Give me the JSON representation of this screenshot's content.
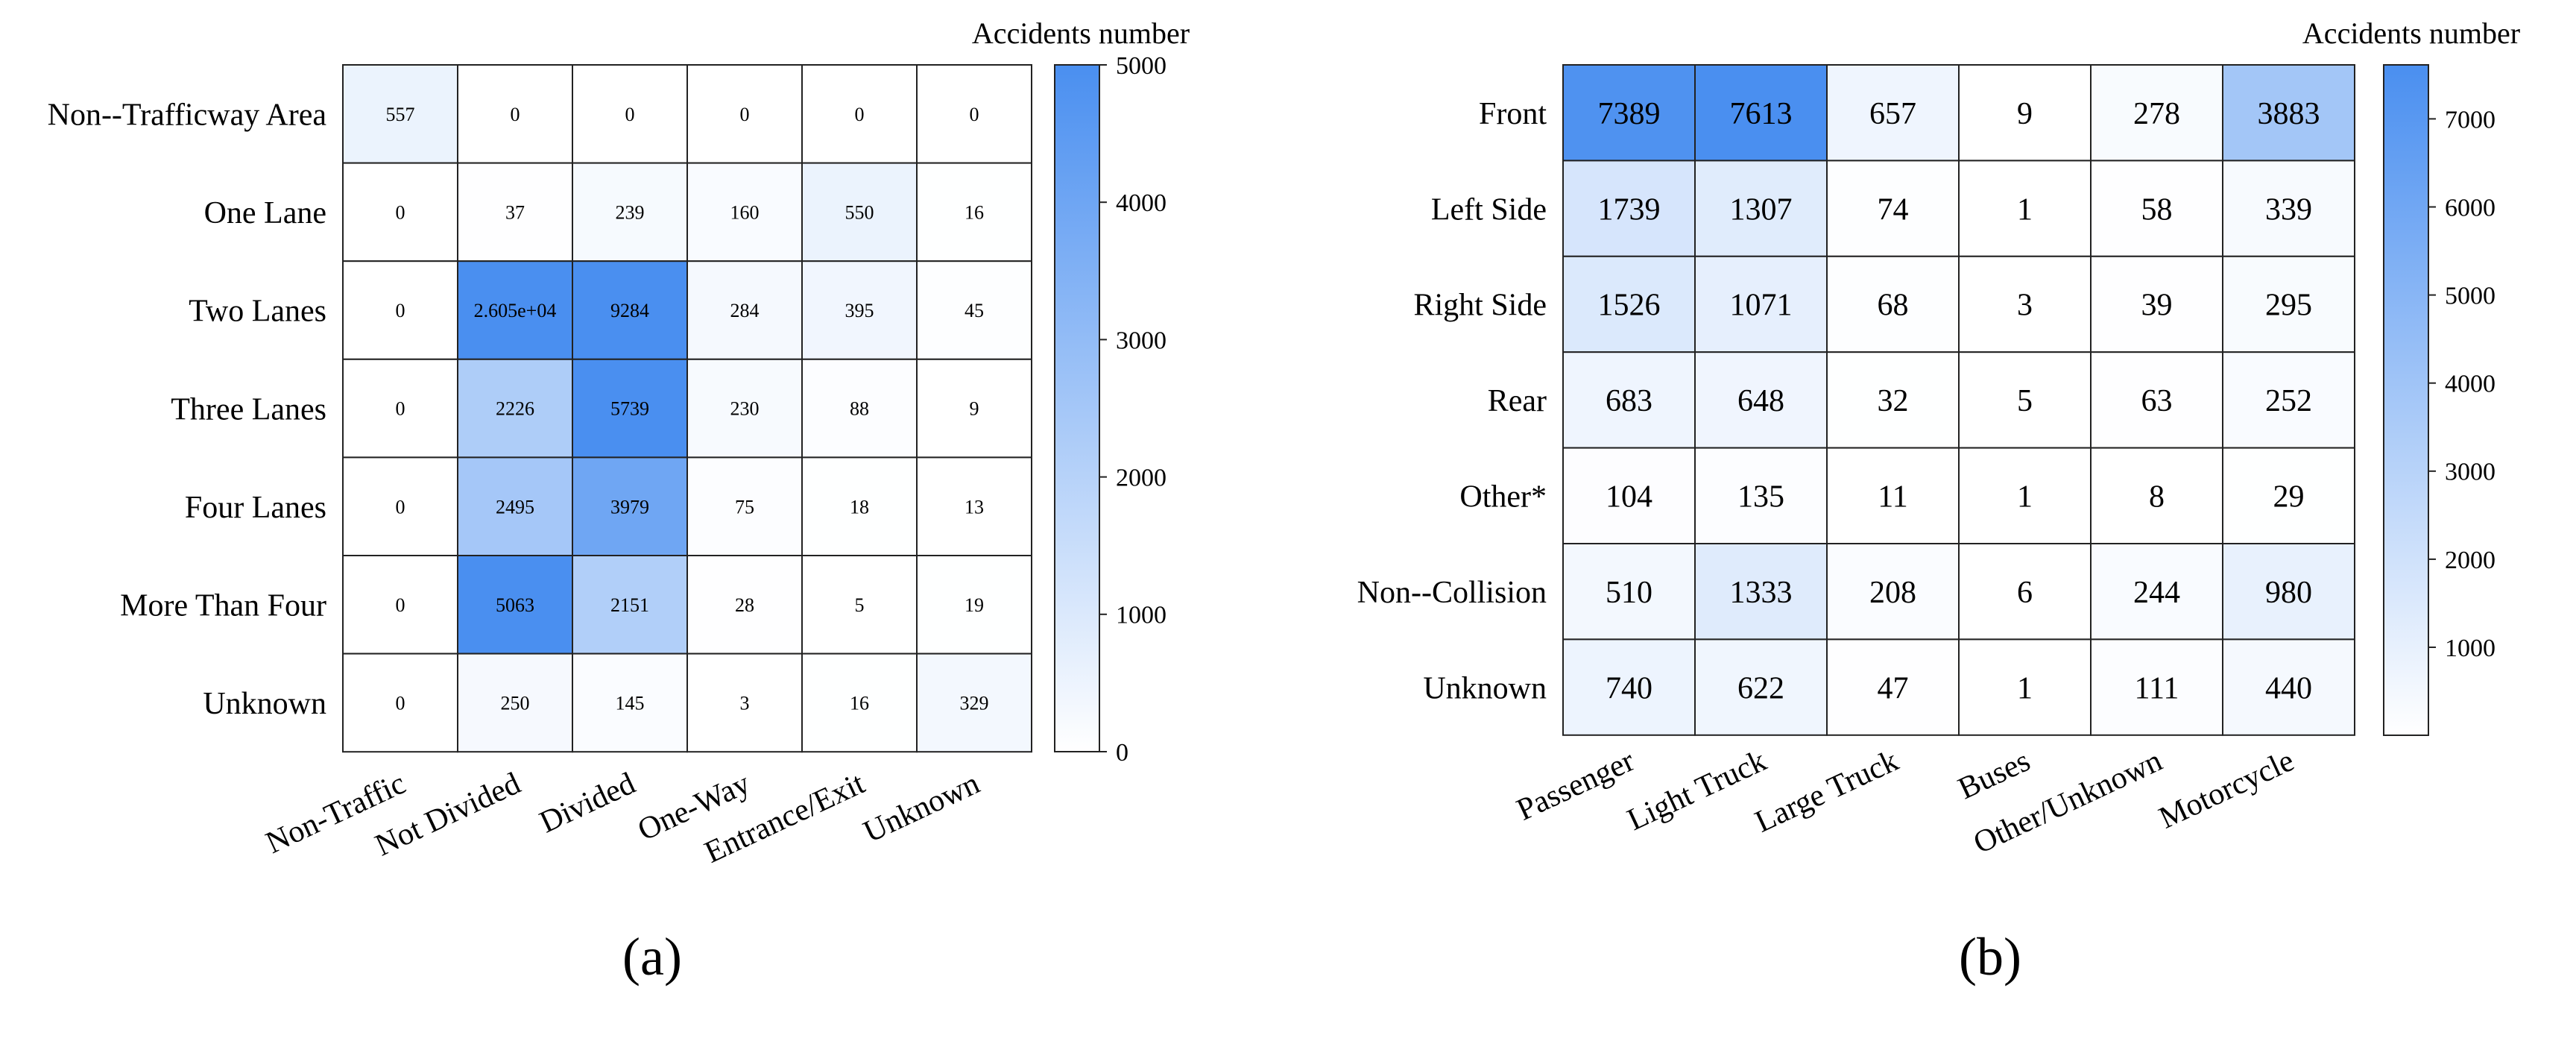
{
  "figure": {
    "panel_labels": [
      "(a)",
      "(b)"
    ]
  },
  "chart_data": [
    {
      "type": "heatmap",
      "panel": "(a)",
      "colorbar_title": "Accidents number",
      "rows": [
        "Non--Trafficway Area",
        "One Lane",
        "Two Lanes",
        "Three Lanes",
        "Four Lanes",
        "More Than Four",
        "Unknown"
      ],
      "columns": [
        "Non-Traffic",
        "Not Divided",
        "Divided",
        "One-Way",
        "Entrance/Exit",
        "Unknown"
      ],
      "values": [
        [
          557,
          0,
          0,
          0,
          0,
          0
        ],
        [
          0,
          37,
          239,
          160,
          550,
          16
        ],
        [
          0,
          26050,
          9284,
          284,
          395,
          45
        ],
        [
          0,
          2226,
          5739,
          230,
          88,
          9
        ],
        [
          0,
          2495,
          3979,
          75,
          18,
          13
        ],
        [
          0,
          5063,
          2151,
          28,
          5,
          19
        ],
        [
          0,
          250,
          145,
          3,
          16,
          329
        ]
      ],
      "cell_labels": [
        [
          "557",
          "0",
          "0",
          "0",
          "0",
          "0"
        ],
        [
          "0",
          "37",
          "239",
          "160",
          "550",
          "16"
        ],
        [
          "0",
          "2.605e+04",
          "9284",
          "284",
          "395",
          "45"
        ],
        [
          "0",
          "2226",
          "5739",
          "230",
          "88",
          "9"
        ],
        [
          "0",
          "2495",
          "3979",
          "75",
          "18",
          "13"
        ],
        [
          "0",
          "5063",
          "2151",
          "28",
          "5",
          "19"
        ],
        [
          "0",
          "250",
          "145",
          "3",
          "16",
          "329"
        ]
      ],
      "color_range": [
        0,
        5000
      ],
      "colorbar_ticks": [
        "0",
        "1000",
        "2000",
        "3000",
        "4000",
        "5000"
      ],
      "colorbar_tick_values": [
        0,
        1000,
        2000,
        3000,
        4000,
        5000
      ],
      "colors": {
        "low": "#ffffff",
        "high": "#4a8ff0"
      }
    },
    {
      "type": "heatmap",
      "panel": "(b)",
      "colorbar_title": "Accidents number",
      "rows": [
        "Front",
        "Left Side",
        "Right Side",
        "Rear",
        "Other*",
        "Non--Collision",
        "Unknown"
      ],
      "columns": [
        "Passenger",
        "Light Truck",
        "Large Truck",
        "Buses",
        "Other/Unknown",
        "Motorcycle"
      ],
      "values": [
        [
          7389,
          7613,
          657,
          9,
          278,
          3883
        ],
        [
          1739,
          1307,
          74,
          1,
          58,
          339
        ],
        [
          1526,
          1071,
          68,
          3,
          39,
          295
        ],
        [
          683,
          648,
          32,
          5,
          63,
          252
        ],
        [
          104,
          135,
          11,
          1,
          8,
          29
        ],
        [
          510,
          1333,
          208,
          6,
          244,
          980
        ],
        [
          740,
          622,
          47,
          1,
          111,
          440
        ]
      ],
      "cell_labels": [
        [
          "7389",
          "7613",
          "657",
          "9",
          "278",
          "3883"
        ],
        [
          "1739",
          "1307",
          "74",
          "1",
          "58",
          "339"
        ],
        [
          "1526",
          "1071",
          "68",
          "3",
          "39",
          "295"
        ],
        [
          "683",
          "648",
          "32",
          "5",
          "63",
          "252"
        ],
        [
          "104",
          "135",
          "11",
          "1",
          "8",
          "29"
        ],
        [
          "510",
          "1333",
          "208",
          "6",
          "244",
          "980"
        ],
        [
          "740",
          "622",
          "47",
          "1",
          "111",
          "440"
        ]
      ],
      "color_range": [
        1,
        7613
      ],
      "colorbar_ticks": [
        "1000",
        "2000",
        "3000",
        "4000",
        "5000",
        "6000",
        "7000"
      ],
      "colorbar_tick_values": [
        1000,
        2000,
        3000,
        4000,
        5000,
        6000,
        7000
      ],
      "colors": {
        "low": "#ffffff",
        "high": "#4a8ff0"
      }
    }
  ]
}
